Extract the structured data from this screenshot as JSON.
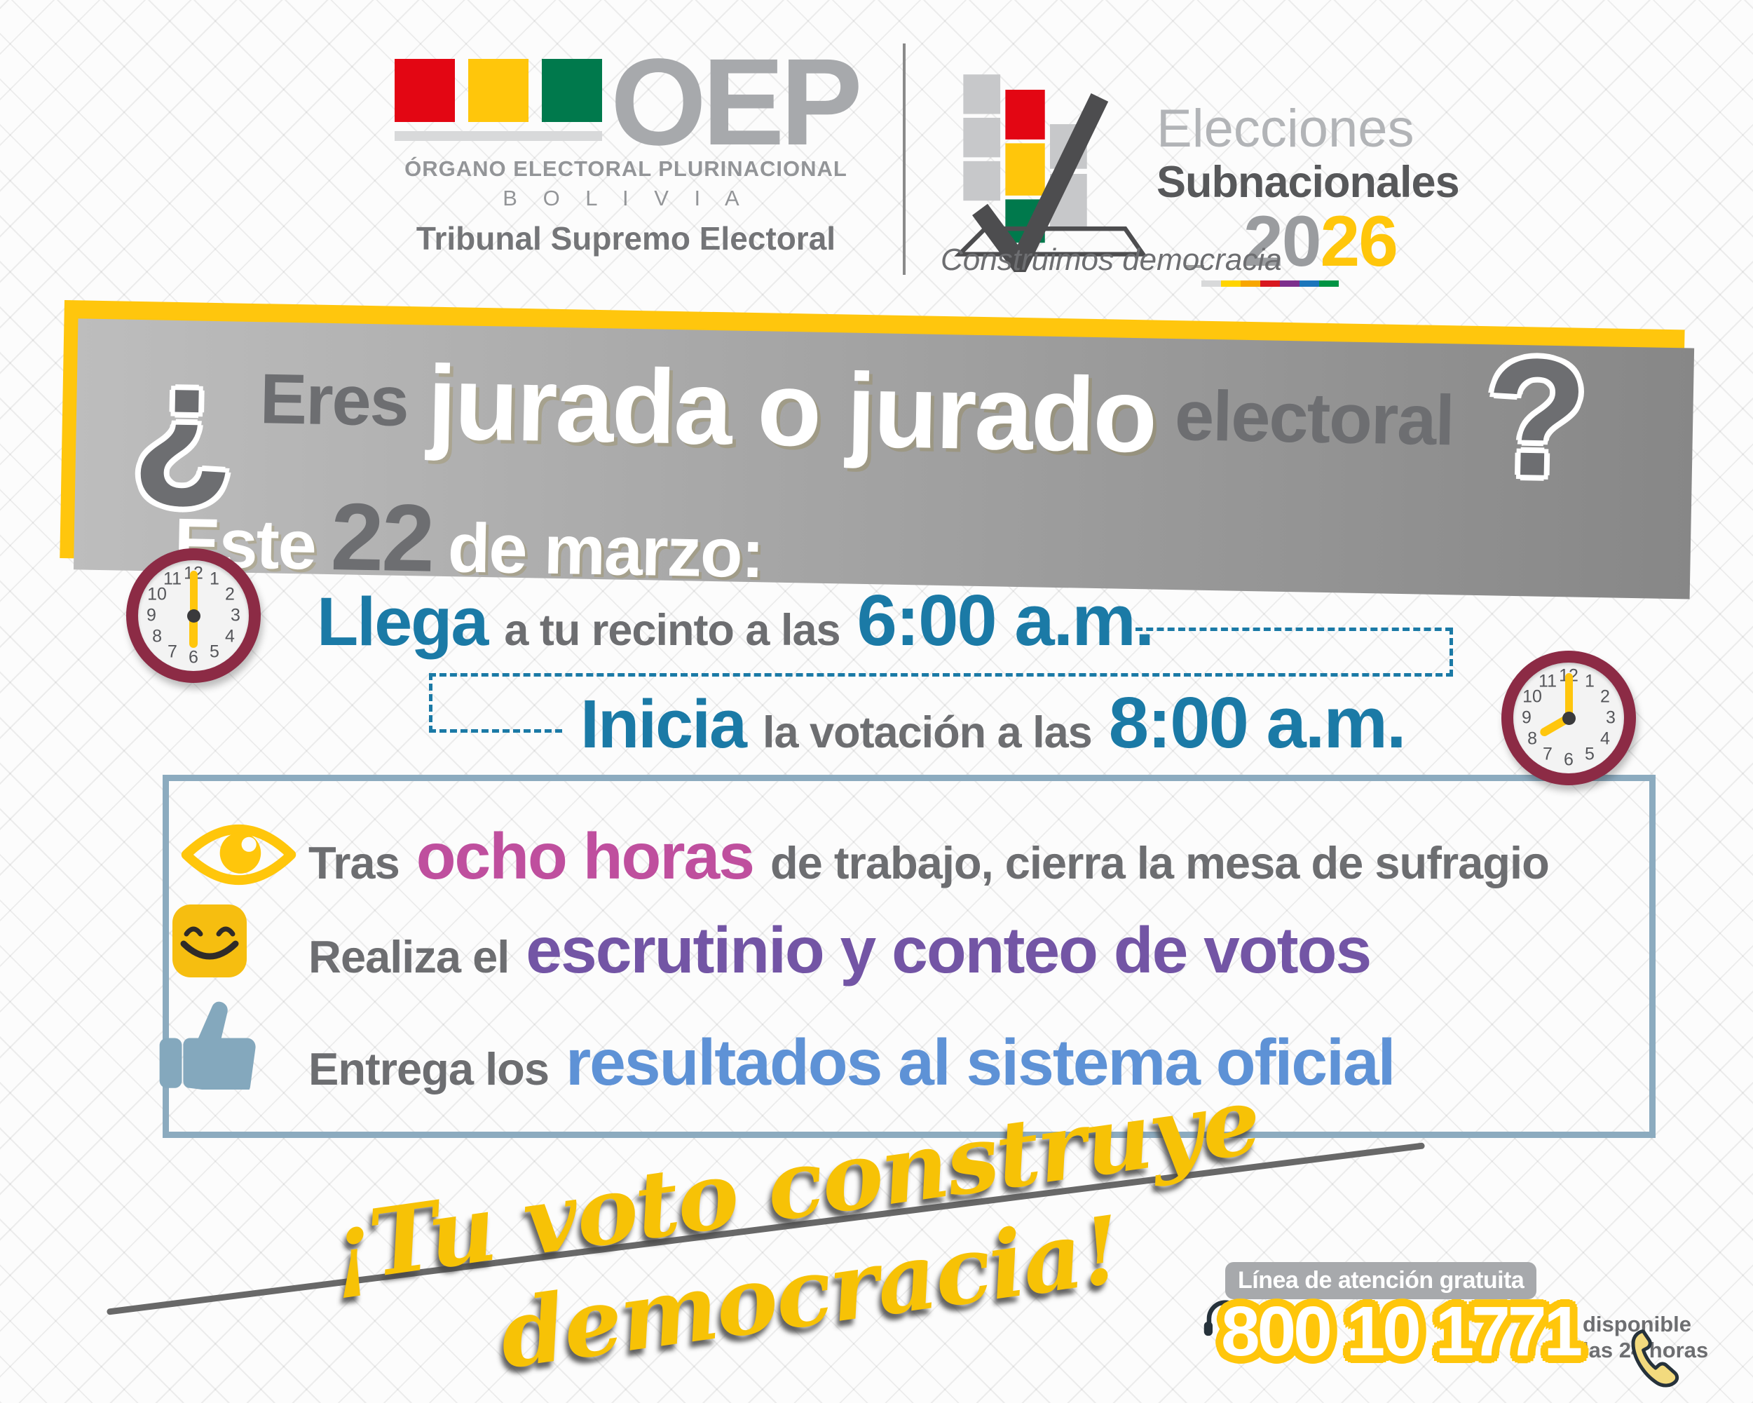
{
  "palette": {
    "yellow": "#FFC60D",
    "gray_text": "#6D6E71",
    "light_gray": "#A7A9AC",
    "red": "#E30613",
    "green": "#00794C",
    "blue": "#1B7AA6",
    "pink": "#BF4F9E",
    "purple": "#7355A5",
    "result_blue": "#5E92D6",
    "steel_blue": "#8CABBF",
    "maroon": "#8C2B45",
    "dark": "#4D4D4F"
  },
  "header": {
    "oep": {
      "acronym": "OEP",
      "org_name": "ÓRGANO ELECTORAL PLURINACIONAL",
      "country": "B O L I V I A",
      "tribunal": "Tribunal Supremo Electoral"
    },
    "elections": {
      "line1": "Elecciones",
      "line2": "Subnacionales",
      "year_gray": "20",
      "year_yellow": "26",
      "slogan": "Construimos democracia",
      "bar_colors": [
        "#D8D9DA",
        "#FFD400",
        "#F7A600",
        "#D8171F",
        "#7D2F8D",
        "#1B75BB",
        "#009444"
      ]
    }
  },
  "banner": {
    "open_mark": "¿",
    "q1": "Eres",
    "q2": "jurada o jurado",
    "q3": "electoral",
    "close_mark": "?",
    "d1": "Este",
    "d2": "22",
    "d3": "de marzo:"
  },
  "schedule": {
    "arrive_verb": "Llega",
    "arrive_rest": "a tu recinto a las",
    "arrive_time": "6:00 a.m.",
    "start_verb": "Inicia",
    "start_rest": "la votación a las",
    "start_time": "8:00 a.m."
  },
  "tasks": [
    {
      "icon": "eye-icon",
      "pre": "Tras",
      "highlight": "ocho horas",
      "post": "de trabajo, cierra la mesa de sufragio",
      "highlight_color": "#BF4F9E"
    },
    {
      "icon": "smiley-icon",
      "pre": "Realiza el",
      "highlight": "escrutinio y conteo de votos",
      "post": "",
      "highlight_color": "#7355A5"
    },
    {
      "icon": "thumbs-up-icon",
      "pre": "Entrega los",
      "highlight": "resultados al sistema oficial",
      "post": "",
      "highlight_color": "#5E92D6"
    }
  ],
  "slogan_script": "¡Tu voto construye democracia!",
  "hotline": {
    "label": "Línea de atención gratuita",
    "number": "800 10 1771",
    "availability1": "disponible",
    "availability2": "las 24 horas"
  },
  "clock_numbers": [
    "1",
    "2",
    "3",
    "4",
    "5",
    "6",
    "7",
    "8",
    "9",
    "10",
    "11",
    "12"
  ],
  "clocks": [
    {
      "time": "6:00",
      "hour_angle": 180,
      "minute_angle": 0
    },
    {
      "time": "8:00",
      "hour_angle": 240,
      "minute_angle": 0
    }
  ]
}
